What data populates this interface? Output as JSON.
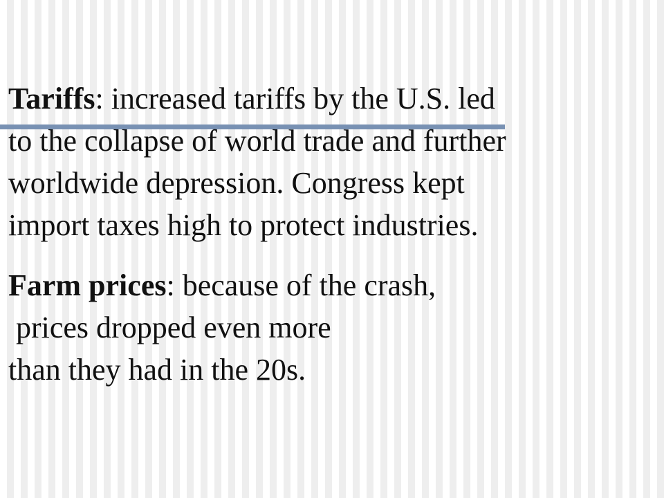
{
  "slide": {
    "paragraphs": [
      {
        "term": "Tariffs",
        "lines": [
          ": increased tariffs by the U.S. led",
          "to the collapse of world trade and further",
          "worldwide depression.  Congress kept",
          "import taxes high to protect industries."
        ]
      },
      {
        "term": "Farm prices",
        "lines": [
          ": because of the crash,",
          " prices dropped even more",
          "than they had in the 20s."
        ]
      }
    ]
  },
  "colors": {
    "accent_rule": "#7891b3",
    "text": "#111111",
    "background_stripe_light": "#ffffff",
    "background_stripe_dark": "#eeeeee"
  }
}
